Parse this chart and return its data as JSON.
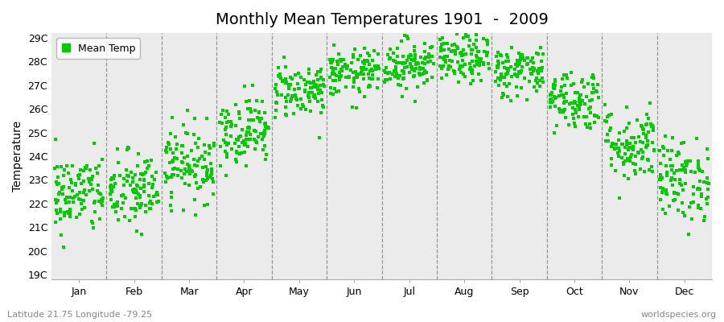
{
  "title": "Monthly Mean Temperatures 1901  -  2009",
  "ylabel": "Temperature",
  "subtitle_left": "Latitude 21.75 Longitude -79.25",
  "subtitle_right": "worldspecies.org",
  "legend_label": "Mean Temp",
  "dot_color": "#00cc00",
  "background_color": "#ebebeb",
  "fig_bg_color": "#ffffff",
  "ylim_min": 19,
  "ylim_max": 29,
  "months": [
    "Jan",
    "Feb",
    "Mar",
    "Apr",
    "May",
    "Jun",
    "Jul",
    "Aug",
    "Sep",
    "Oct",
    "Nov",
    "Dec"
  ],
  "monthly_means": [
    22.4,
    22.5,
    23.7,
    25.1,
    26.8,
    27.5,
    27.9,
    28.1,
    27.6,
    26.4,
    24.5,
    23.0
  ],
  "monthly_stds": [
    0.85,
    0.85,
    0.8,
    0.72,
    0.58,
    0.5,
    0.55,
    0.52,
    0.55,
    0.65,
    0.8,
    0.88
  ],
  "n_years": 109,
  "random_seed": 42,
  "marker_size": 6,
  "title_fontsize": 14,
  "axis_fontsize": 10,
  "tick_fontsize": 9,
  "annotation_fontsize": 8
}
